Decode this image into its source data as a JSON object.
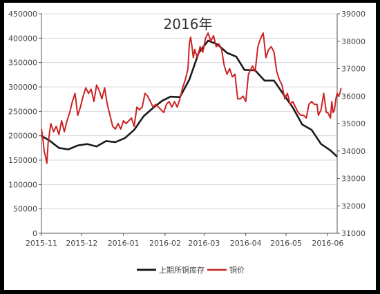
{
  "chart_data": {
    "type": "line",
    "title": "2016年",
    "x_ticks": [
      "2015-11",
      "2015-12",
      "2016-01",
      "2016-02",
      "2016-03",
      "2016-04",
      "2016-05",
      "2016-06"
    ],
    "x_range": [
      "2015-11-01",
      "2016-06-08"
    ],
    "y_left": {
      "ylim": [
        0,
        450000
      ],
      "ticks": [
        "0",
        "50000",
        "100000",
        "150000",
        "200000",
        "250000",
        "300000",
        "350000",
        "400000",
        "450000"
      ]
    },
    "y_right": {
      "ylim": [
        31000,
        39000
      ],
      "ticks": [
        "31000",
        "32000",
        "33000",
        "34000",
        "35000",
        "36000",
        "37000",
        "38000",
        "39000"
      ]
    },
    "grid": "horizontal",
    "legend_position": "bottom",
    "series": [
      {
        "name": "上期所铜库存",
        "color": "#1a1a1a",
        "axis": "left",
        "points": [
          [
            "2015-11-01",
            200000
          ],
          [
            "2015-11-07",
            190000
          ],
          [
            "2015-11-14",
            175000
          ],
          [
            "2015-11-21",
            172000
          ],
          [
            "2015-11-28",
            180000
          ],
          [
            "2015-12-05",
            183000
          ],
          [
            "2015-12-12",
            178000
          ],
          [
            "2015-12-19",
            189000
          ],
          [
            "2015-12-26",
            187000
          ],
          [
            "2016-01-02",
            195000
          ],
          [
            "2016-01-09",
            212000
          ],
          [
            "2016-01-16",
            240000
          ],
          [
            "2016-01-23",
            257000
          ],
          [
            "2016-01-30",
            272000
          ],
          [
            "2016-02-05",
            280000
          ],
          [
            "2016-02-12",
            279000
          ],
          [
            "2016-02-19",
            315000
          ],
          [
            "2016-02-26",
            370000
          ],
          [
            "2016-03-04",
            395000
          ],
          [
            "2016-03-11",
            387000
          ],
          [
            "2016-03-18",
            370000
          ],
          [
            "2016-03-25",
            362000
          ],
          [
            "2016-03-31",
            335000
          ],
          [
            "2016-04-08",
            334000
          ],
          [
            "2016-04-15",
            313000
          ],
          [
            "2016-04-22",
            313000
          ],
          [
            "2016-04-29",
            285000
          ],
          [
            "2016-05-06",
            258000
          ],
          [
            "2016-05-13",
            223000
          ],
          [
            "2016-05-20",
            212000
          ],
          [
            "2016-05-27",
            183000
          ],
          [
            "2016-06-03",
            170000
          ],
          [
            "2016-06-08",
            157000
          ]
        ]
      },
      {
        "name": "铜价",
        "color": "#cc2222",
        "axis": "right",
        "points": [
          [
            "2015-11-01",
            34800
          ],
          [
            "2015-11-02",
            34500
          ],
          [
            "2015-11-03",
            34000
          ],
          [
            "2015-11-04",
            33800
          ],
          [
            "2015-11-05",
            33550
          ],
          [
            "2015-11-06",
            34300
          ],
          [
            "2015-11-08",
            35000
          ],
          [
            "2015-11-10",
            34700
          ],
          [
            "2015-11-12",
            34900
          ],
          [
            "2015-11-14",
            34600
          ],
          [
            "2015-11-16",
            35100
          ],
          [
            "2015-11-18",
            34700
          ],
          [
            "2015-11-20",
            35100
          ],
          [
            "2015-11-22",
            35400
          ],
          [
            "2015-11-24",
            35800
          ],
          [
            "2015-11-26",
            36100
          ],
          [
            "2015-11-28",
            35300
          ],
          [
            "2015-11-30",
            35600
          ],
          [
            "2015-12-02",
            36000
          ],
          [
            "2015-12-04",
            36300
          ],
          [
            "2015-12-06",
            36100
          ],
          [
            "2015-12-08",
            36250
          ],
          [
            "2015-12-10",
            35800
          ],
          [
            "2015-12-12",
            36400
          ],
          [
            "2015-12-14",
            36200
          ],
          [
            "2015-12-16",
            35900
          ],
          [
            "2015-12-18",
            36300
          ],
          [
            "2015-12-20",
            35700
          ],
          [
            "2015-12-22",
            35300
          ],
          [
            "2015-12-24",
            34900
          ],
          [
            "2015-12-26",
            34800
          ],
          [
            "2015-12-28",
            35000
          ],
          [
            "2015-12-30",
            34800
          ],
          [
            "2016-01-01",
            35100
          ],
          [
            "2016-01-03",
            35000
          ],
          [
            "2016-01-05",
            35100
          ],
          [
            "2016-01-07",
            35200
          ],
          [
            "2016-01-09",
            34900
          ],
          [
            "2016-01-11",
            35600
          ],
          [
            "2016-01-13",
            35500
          ],
          [
            "2016-01-15",
            35600
          ],
          [
            "2016-01-17",
            36100
          ],
          [
            "2016-01-19",
            36000
          ],
          [
            "2016-01-21",
            35800
          ],
          [
            "2016-01-23",
            35600
          ],
          [
            "2016-01-25",
            35700
          ],
          [
            "2016-01-27",
            35600
          ],
          [
            "2016-01-29",
            35500
          ],
          [
            "2016-01-31",
            35400
          ],
          [
            "2016-02-02",
            35700
          ],
          [
            "2016-02-04",
            35800
          ],
          [
            "2016-02-06",
            35600
          ],
          [
            "2016-02-08",
            35800
          ],
          [
            "2016-02-10",
            35600
          ],
          [
            "2016-02-12",
            35900
          ],
          [
            "2016-02-14",
            36300
          ],
          [
            "2016-02-16",
            36600
          ],
          [
            "2016-02-18",
            37000
          ],
          [
            "2016-02-19",
            37900
          ],
          [
            "2016-02-20",
            38150
          ],
          [
            "2016-02-21",
            37800
          ],
          [
            "2016-02-22",
            37400
          ],
          [
            "2016-02-23",
            37700
          ],
          [
            "2016-02-25",
            37400
          ],
          [
            "2016-02-27",
            37800
          ],
          [
            "2016-02-29",
            37600
          ],
          [
            "2016-03-02",
            38100
          ],
          [
            "2016-03-04",
            38300
          ],
          [
            "2016-03-06",
            38000
          ],
          [
            "2016-03-08",
            38200
          ],
          [
            "2016-03-10",
            37800
          ],
          [
            "2016-03-12",
            37900
          ],
          [
            "2016-03-14",
            37700
          ],
          [
            "2016-03-16",
            37100
          ],
          [
            "2016-03-18",
            36800
          ],
          [
            "2016-03-20",
            37000
          ],
          [
            "2016-03-22",
            36700
          ],
          [
            "2016-03-24",
            36800
          ],
          [
            "2016-03-26",
            35900
          ],
          [
            "2016-03-28",
            35900
          ],
          [
            "2016-03-30",
            36000
          ],
          [
            "2016-04-01",
            35800
          ],
          [
            "2016-04-03",
            36800
          ],
          [
            "2016-04-05",
            37000
          ],
          [
            "2016-04-06",
            37100
          ],
          [
            "2016-04-08",
            36900
          ],
          [
            "2016-04-10",
            37800
          ],
          [
            "2016-04-12",
            38100
          ],
          [
            "2016-04-14",
            38300
          ],
          [
            "2016-04-16",
            37400
          ],
          [
            "2016-04-18",
            37700
          ],
          [
            "2016-04-20",
            37800
          ],
          [
            "2016-04-22",
            37600
          ],
          [
            "2016-04-24",
            36900
          ],
          [
            "2016-04-26",
            36600
          ],
          [
            "2016-04-28",
            36400
          ],
          [
            "2016-04-30",
            35900
          ],
          [
            "2016-05-02",
            36100
          ],
          [
            "2016-05-04",
            35700
          ],
          [
            "2016-05-06",
            35800
          ],
          [
            "2016-05-08",
            35600
          ],
          [
            "2016-05-10",
            35400
          ],
          [
            "2016-05-12",
            35300
          ],
          [
            "2016-05-14",
            35300
          ],
          [
            "2016-05-16",
            35200
          ],
          [
            "2016-05-18",
            35700
          ],
          [
            "2016-05-20",
            35800
          ],
          [
            "2016-05-22",
            35700
          ],
          [
            "2016-05-24",
            35700
          ],
          [
            "2016-05-25",
            35300
          ],
          [
            "2016-05-27",
            35500
          ],
          [
            "2016-05-29",
            36100
          ],
          [
            "2016-05-31",
            35400
          ],
          [
            "2016-06-01",
            35400
          ],
          [
            "2016-06-02",
            35300
          ],
          [
            "2016-06-03",
            35200
          ],
          [
            "2016-06-04",
            35800
          ],
          [
            "2016-06-05",
            35400
          ],
          [
            "2016-06-06",
            35500
          ],
          [
            "2016-06-07",
            35900
          ],
          [
            "2016-06-08",
            36100
          ],
          [
            "2016-06-09",
            36000
          ],
          [
            "2016-06-10",
            36100
          ],
          [
            "2016-06-11",
            36300
          ]
        ]
      }
    ]
  }
}
